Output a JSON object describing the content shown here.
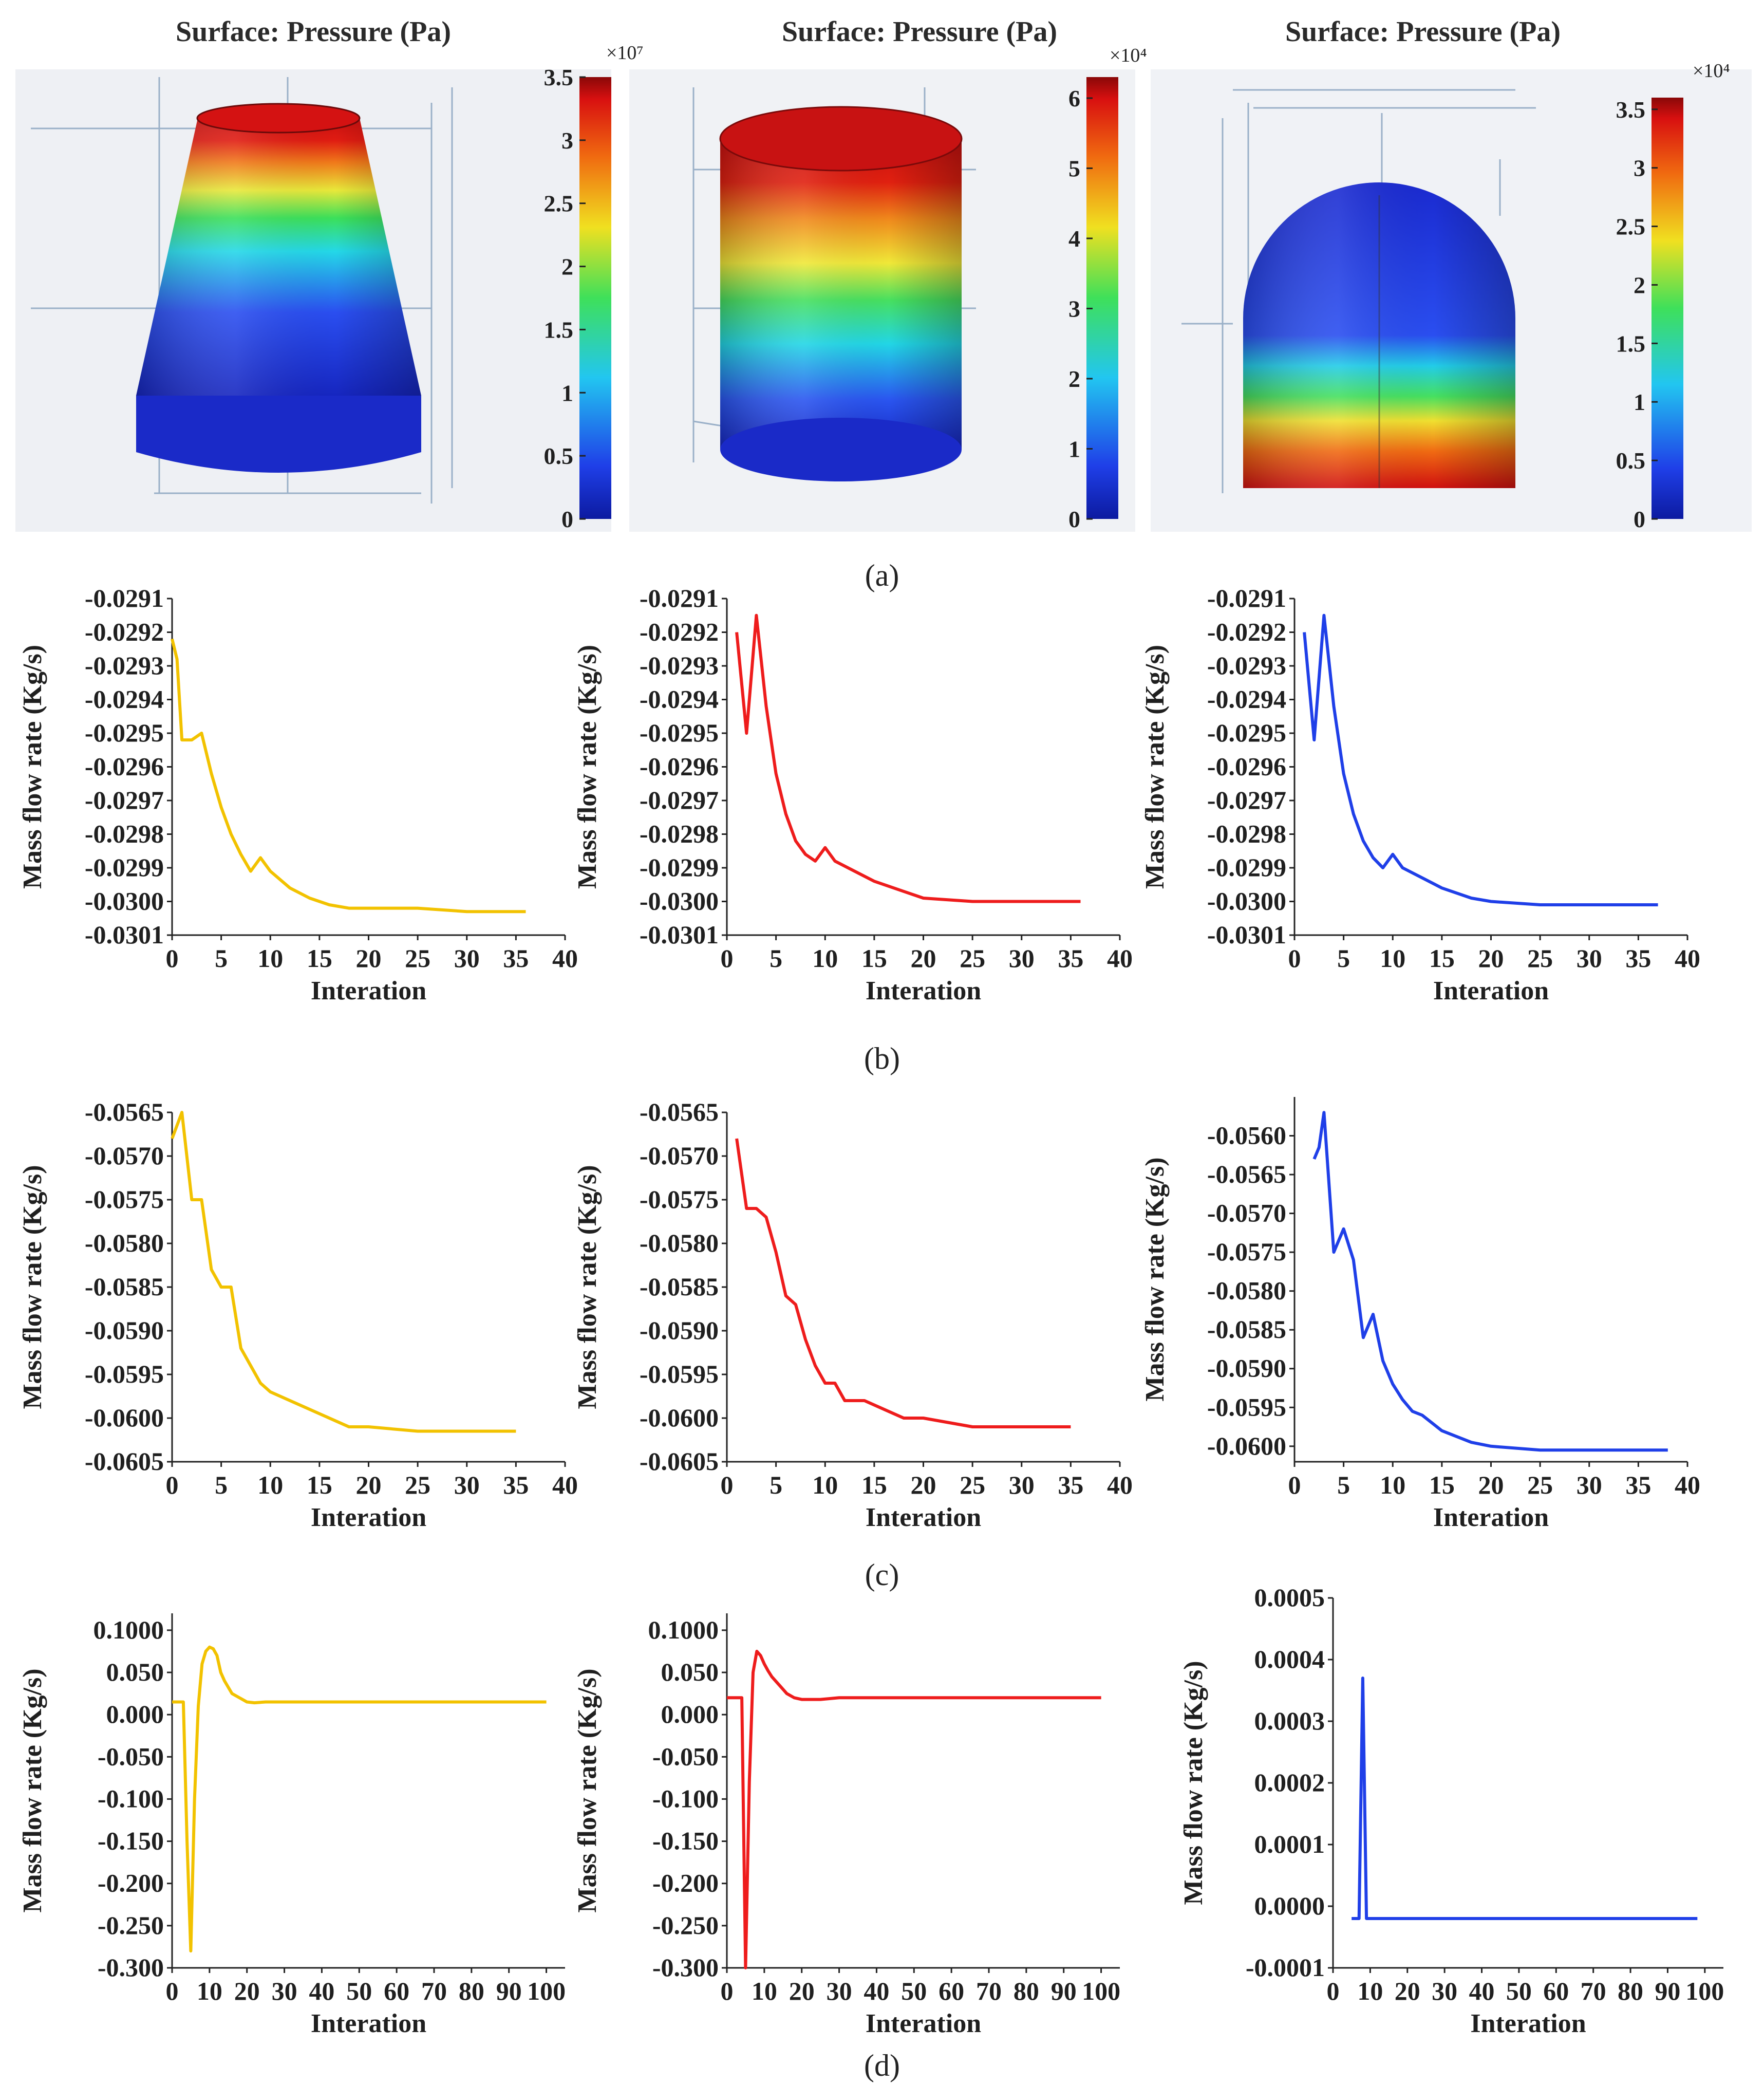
{
  "panels": {
    "a": "(a)",
    "b": "(b)",
    "c": "(c)",
    "d": "(d)"
  },
  "colors": {
    "yellow": "#F2C200",
    "red": "#EE1C1C",
    "blue": "#1F3FE8"
  },
  "surfaces": [
    {
      "title": "Surface: Pressure (Pa)",
      "shape": "cone",
      "colorbar_exponent": "×10⁷",
      "colorbar_ticks": [
        "3.5",
        "3",
        "2.5",
        "2",
        "1.5",
        "1",
        "0.5",
        "0"
      ],
      "colorbar_range": [
        0,
        3.5
      ]
    },
    {
      "title": "Surface: Pressure (Pa)",
      "shape": "cylinder",
      "colorbar_exponent": "×10⁴",
      "colorbar_ticks": [
        "6",
        "5",
        "4",
        "3",
        "2",
        "1",
        "0"
      ],
      "colorbar_range": [
        0,
        6.3
      ]
    },
    {
      "title": "Surface: Pressure (Pa)",
      "shape": "dome",
      "colorbar_exponent": "×10⁴",
      "colorbar_ticks": [
        "3.5",
        "3",
        "2.5",
        "2",
        "1.5",
        "1",
        "0.5",
        "0"
      ],
      "colorbar_range": [
        0,
        3.6
      ]
    }
  ],
  "chart_data": [
    {
      "type": "line",
      "row": "b",
      "color": "#F2C200",
      "xlabel": "Interation",
      "ylabel": "Mass flow rate (Kg/s)",
      "xlim": [
        0,
        40
      ],
      "ylim": [
        -0.0301,
        -0.0291
      ],
      "xticks": [
        "0",
        "5",
        "10",
        "15",
        "20",
        "25",
        "30",
        "35",
        "40"
      ],
      "yticks": [
        "-0.0291",
        "-0.0292",
        "-0.0293",
        "-0.0294",
        "-0.0295",
        "-0.0296",
        "-0.0297",
        "-0.0298",
        "-0.0299",
        "-0.0300",
        "-0.0301"
      ],
      "x": [
        0,
        0.5,
        1,
        2,
        3,
        4,
        5,
        6,
        7,
        8,
        9,
        10,
        12,
        14,
        16,
        18,
        20,
        25,
        30,
        36
      ],
      "y": [
        -0.02922,
        -0.02928,
        -0.02952,
        -0.02952,
        -0.0295,
        -0.02962,
        -0.02972,
        -0.0298,
        -0.02986,
        -0.02991,
        -0.02987,
        -0.02991,
        -0.02996,
        -0.02999,
        -0.03001,
        -0.03002,
        -0.03002,
        -0.03002,
        -0.03003,
        -0.03003
      ]
    },
    {
      "type": "line",
      "row": "b",
      "color": "#EE1C1C",
      "xlabel": "Interation",
      "ylabel": "Mass flow rate (Kg/s)",
      "xlim": [
        0,
        40
      ],
      "ylim": [
        -0.0301,
        -0.0291
      ],
      "xticks": [
        "0",
        "5",
        "10",
        "15",
        "20",
        "25",
        "30",
        "35",
        "40"
      ],
      "yticks": [
        "-0.0291",
        "-0.0292",
        "-0.0293",
        "-0.0294",
        "-0.0295",
        "-0.0296",
        "-0.0297",
        "-0.0298",
        "-0.0299",
        "-0.0300",
        "-0.0301"
      ],
      "x": [
        1,
        2,
        3,
        4,
        5,
        6,
        7,
        8,
        9,
        10,
        11,
        13,
        15,
        18,
        20,
        25,
        30,
        36
      ],
      "y": [
        -0.0292,
        -0.0295,
        -0.02915,
        -0.02942,
        -0.02962,
        -0.02974,
        -0.02982,
        -0.02986,
        -0.02988,
        -0.02984,
        -0.02988,
        -0.02991,
        -0.02994,
        -0.02997,
        -0.02999,
        -0.03,
        -0.03,
        -0.03
      ]
    },
    {
      "type": "line",
      "row": "b",
      "color": "#1F3FE8",
      "xlabel": "Interation",
      "ylabel": "Mass flow rate (Kg/s)",
      "xlim": [
        0,
        40
      ],
      "ylim": [
        -0.0301,
        -0.0291
      ],
      "xticks": [
        "0",
        "5",
        "10",
        "15",
        "20",
        "25",
        "30",
        "35",
        "40"
      ],
      "yticks": [
        "-0.0291",
        "-0.0292",
        "-0.0293",
        "-0.0294",
        "-0.0295",
        "-0.0296",
        "-0.0297",
        "-0.0298",
        "-0.0299",
        "-0.0300",
        "-0.0301"
      ],
      "x": [
        1,
        2,
        3,
        4,
        5,
        6,
        7,
        8,
        9,
        10,
        11,
        13,
        15,
        18,
        20,
        25,
        30,
        37
      ],
      "y": [
        -0.0292,
        -0.02952,
        -0.02915,
        -0.02942,
        -0.02962,
        -0.02974,
        -0.02982,
        -0.02987,
        -0.0299,
        -0.02986,
        -0.0299,
        -0.02993,
        -0.02996,
        -0.02999,
        -0.03,
        -0.03001,
        -0.03001,
        -0.03001
      ]
    },
    {
      "type": "line",
      "row": "c",
      "color": "#F2C200",
      "xlabel": "Interation",
      "ylabel": "Mass flow rate (Kg/s)",
      "xlim": [
        0,
        40
      ],
      "ylim": [
        -0.0605,
        -0.0565
      ],
      "xticks": [
        "0",
        "5",
        "10",
        "15",
        "20",
        "25",
        "30",
        "35",
        "40"
      ],
      "yticks": [
        "-0.0565",
        "-0.0570",
        "-0.0575",
        "-0.0580",
        "-0.0585",
        "-0.0590",
        "-0.0595",
        "-0.0600",
        "-0.0605"
      ],
      "x": [
        0,
        1,
        2,
        3,
        4,
        5,
        6,
        7,
        8,
        9,
        10,
        12,
        15,
        18,
        20,
        25,
        30,
        35
      ],
      "y": [
        -0.0568,
        -0.0565,
        -0.0575,
        -0.0575,
        -0.0583,
        -0.0585,
        -0.0585,
        -0.0592,
        -0.0594,
        -0.0596,
        -0.0597,
        -0.0598,
        -0.05995,
        -0.0601,
        -0.0601,
        -0.06015,
        -0.06015,
        -0.06015
      ]
    },
    {
      "type": "line",
      "row": "c",
      "color": "#EE1C1C",
      "xlabel": "Interation",
      "ylabel": "Mass flow rate (Kg/s)",
      "xlim": [
        0,
        40
      ],
      "ylim": [
        -0.0605,
        -0.0565
      ],
      "xticks": [
        "0",
        "5",
        "10",
        "15",
        "20",
        "25",
        "30",
        "35",
        "40"
      ],
      "yticks": [
        "-0.0565",
        "-0.0570",
        "-0.0575",
        "-0.0580",
        "-0.0585",
        "-0.0590",
        "-0.0595",
        "-0.0600",
        "-0.0605"
      ],
      "x": [
        1,
        2,
        3,
        4,
        5,
        6,
        7,
        8,
        9,
        10,
        11,
        12,
        14,
        16,
        18,
        20,
        25,
        30,
        35
      ],
      "y": [
        -0.0568,
        -0.0576,
        -0.0576,
        -0.0577,
        -0.0581,
        -0.0586,
        -0.0587,
        -0.0591,
        -0.0594,
        -0.0596,
        -0.0596,
        -0.0598,
        -0.0598,
        -0.0599,
        -0.06,
        -0.06,
        -0.0601,
        -0.0601,
        -0.0601
      ]
    },
    {
      "type": "line",
      "row": "c",
      "color": "#1F3FE8",
      "xlabel": "Interation",
      "ylabel": "Mass flow rate (Kg/s)",
      "xlim": [
        0,
        40
      ],
      "ylim": [
        -0.0602,
        -0.0555
      ],
      "xticks": [
        "0",
        "5",
        "10",
        "15",
        "20",
        "25",
        "30",
        "35",
        "40"
      ],
      "yticks": [
        "-0.0560",
        "-0.0565",
        "-0.0570",
        "-0.0575",
        "-0.0580",
        "-0.0585",
        "-0.0590",
        "-0.0595",
        "-0.0600"
      ],
      "x": [
        2,
        2.5,
        3,
        4,
        5,
        6,
        7,
        8,
        9,
        10,
        11,
        12,
        13,
        15,
        18,
        20,
        25,
        30,
        38
      ],
      "y": [
        -0.0563,
        -0.05615,
        -0.0557,
        -0.0575,
        -0.0572,
        -0.0576,
        -0.0586,
        -0.0583,
        -0.0589,
        -0.0592,
        -0.0594,
        -0.05955,
        -0.0596,
        -0.0598,
        -0.05995,
        -0.06,
        -0.06005,
        -0.06005,
        -0.06005
      ]
    },
    {
      "type": "line",
      "row": "d",
      "color": "#F2C200",
      "xlabel": "Interation",
      "ylabel": "Mass flow rate (Kg/s)",
      "xlim": [
        0,
        105
      ],
      "ylim": [
        -0.3,
        0.12
      ],
      "xticks": [
        "0",
        "10",
        "20",
        "30",
        "40",
        "50",
        "60",
        "70",
        "80",
        "90",
        "100"
      ],
      "yticks": [
        "0.1000",
        "0.050",
        "0.000",
        "-0.050",
        "-0.100",
        "-0.150",
        "-0.200",
        "-0.250",
        "-0.300"
      ],
      "x": [
        0,
        3,
        4,
        5,
        6,
        7,
        8,
        9,
        10,
        11,
        12,
        13,
        14,
        16,
        18,
        20,
        22,
        25,
        30,
        40,
        60,
        80,
        100
      ],
      "y": [
        0.015,
        0.015,
        -0.15,
        -0.28,
        -0.1,
        0.01,
        0.06,
        0.075,
        0.08,
        0.078,
        0.07,
        0.05,
        0.04,
        0.025,
        0.02,
        0.015,
        0.014,
        0.015,
        0.015,
        0.015,
        0.015,
        0.015,
        0.015
      ]
    },
    {
      "type": "line",
      "row": "d",
      "color": "#EE1C1C",
      "xlabel": "Interation",
      "ylabel": "Mass flow rate (Kg/s)",
      "xlim": [
        0,
        105
      ],
      "ylim": [
        -0.3,
        0.12
      ],
      "xticks": [
        "0",
        "10",
        "20",
        "30",
        "40",
        "50",
        "60",
        "70",
        "80",
        "90",
        "100"
      ],
      "yticks": [
        "0.1000",
        "0.050",
        "0.000",
        "-0.050",
        "-0.100",
        "-0.150",
        "-0.200",
        "-0.250",
        "-0.300"
      ],
      "x": [
        0,
        4,
        5,
        6,
        7,
        8,
        9,
        10,
        11,
        12,
        14,
        16,
        18,
        20,
        25,
        30,
        40,
        60,
        80,
        100
      ],
      "y": [
        0.02,
        0.02,
        -0.3,
        -0.08,
        0.05,
        0.075,
        0.07,
        0.06,
        0.052,
        0.045,
        0.035,
        0.025,
        0.02,
        0.018,
        0.018,
        0.02,
        0.02,
        0.02,
        0.02,
        0.02
      ]
    },
    {
      "type": "line",
      "row": "d",
      "color": "#1F3FE8",
      "xlabel": "Interation",
      "ylabel": "Mass flow rate (Kg/s)",
      "xlim": [
        0,
        105
      ],
      "ylim": [
        -0.0001,
        0.0005
      ],
      "xticks": [
        "0",
        "10",
        "20",
        "30",
        "40",
        "50",
        "60",
        "70",
        "80",
        "90",
        "100"
      ],
      "yticks": [
        "0.0005",
        "0.0004",
        "0.0003",
        "0.0002",
        "0.0001",
        "0.0000",
        "-0.0001"
      ],
      "x": [
        5,
        7,
        8,
        9,
        10,
        20,
        40,
        60,
        80,
        98
      ],
      "y": [
        -2e-05,
        -2e-05,
        0.00037,
        -2e-05,
        -2e-05,
        -2e-05,
        -2e-05,
        -2e-05,
        -2e-05,
        -2e-05
      ]
    }
  ]
}
